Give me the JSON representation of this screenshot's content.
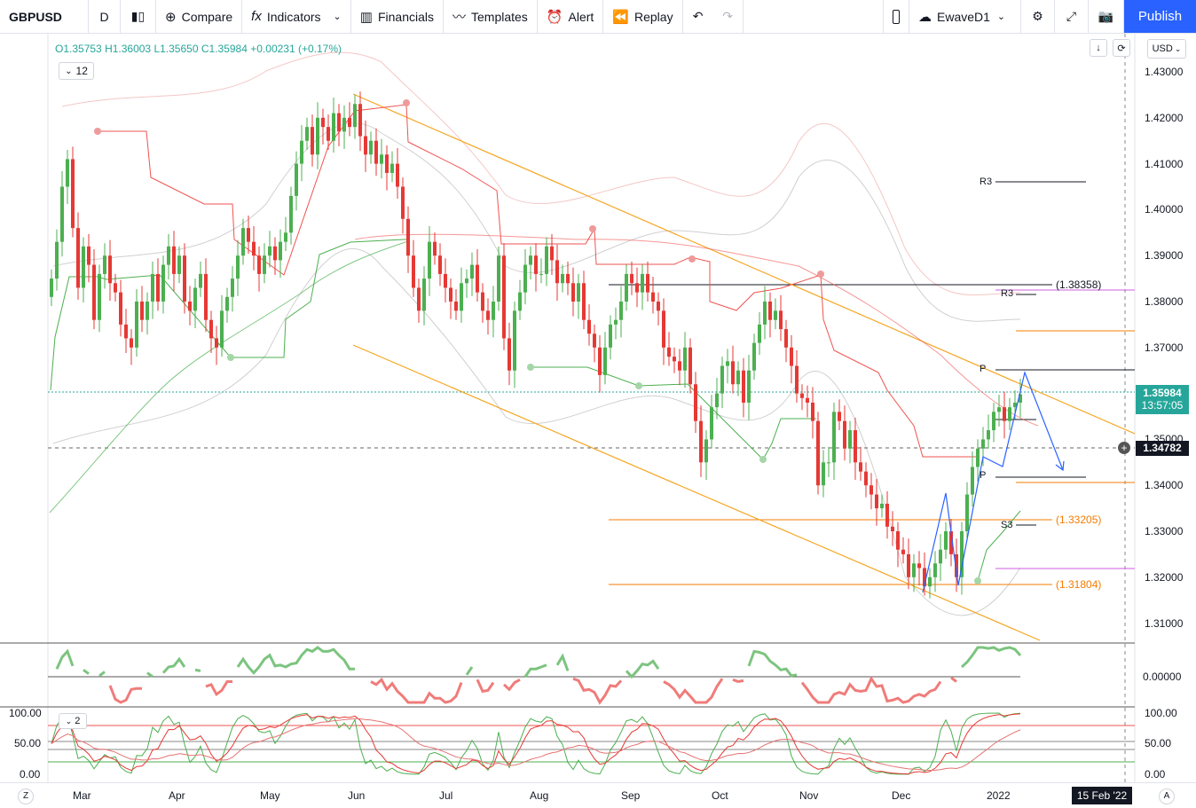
{
  "toolbar": {
    "symbol": "GBPUSD",
    "interval": "D",
    "compare": "Compare",
    "indicators": "Indicators",
    "financials": "Financials",
    "templates": "Templates",
    "alert": "Alert",
    "replay": "Replay",
    "layout_name": "EwaveD1",
    "publish": "Publish"
  },
  "legend": {
    "open": "O1.35753",
    "high": "H1.36003",
    "low": "L1.35650",
    "close": "C1.35984",
    "change": "+0.00231 (+0.17%)",
    "indicator_count": "12",
    "osc_count": "2"
  },
  "currency": "USD",
  "price_axis": {
    "ticks": [
      "1.43000",
      "1.42000",
      "1.41000",
      "1.40000",
      "1.39000",
      "1.38000",
      "1.37000",
      "1.35000",
      "1.34000",
      "1.33000",
      "1.32000",
      "1.31000"
    ],
    "last_price": "1.35984",
    "countdown": "13:57:05",
    "crosshair_price": "1.34782"
  },
  "levels": {
    "l1": "(1.38358)",
    "l2": "(1.33205)",
    "l3": "(1.31804)",
    "r3_top": "R3",
    "r3_mid": "R3",
    "p_top": "P",
    "p_mid": "P",
    "s3": "S3"
  },
  "osc1_axis": {
    "zero": "0.00000"
  },
  "osc2_axis": {
    "top": "100.00",
    "mid": "50.00",
    "bottom": "0.00"
  },
  "time_axis": [
    "Mar",
    "Apr",
    "May",
    "Jun",
    "Jul",
    "Aug",
    "Sep",
    "Oct",
    "Nov",
    "Dec",
    "2022"
  ],
  "date_cursor": "15 Feb '22",
  "footer": {
    "z": "Z",
    "a": "A"
  },
  "colors": {
    "up": "#26a69a",
    "down": "#ef5350",
    "accent": "#2962ff"
  },
  "chart_data": {
    "type": "candlestick",
    "symbol": "GBPUSD",
    "ylim": [
      1.305,
      1.435
    ],
    "close_series": [
      1.385,
      1.393,
      1.405,
      1.411,
      1.396,
      1.383,
      1.392,
      1.388,
      1.376,
      1.386,
      1.39,
      1.384,
      1.382,
      1.375,
      1.372,
      1.37,
      1.38,
      1.376,
      1.38,
      1.386,
      1.38,
      1.388,
      1.392,
      1.386,
      1.39,
      1.38,
      1.378,
      1.383,
      1.386,
      1.376,
      1.372,
      1.37,
      1.378,
      1.381,
      1.385,
      1.39,
      1.396,
      1.393,
      1.39,
      1.386,
      1.39,
      1.392,
      1.389,
      1.393,
      1.395,
      1.403,
      1.41,
      1.415,
      1.418,
      1.412,
      1.42,
      1.418,
      1.415,
      1.421,
      1.417,
      1.42,
      1.418,
      1.423,
      1.416,
      1.412,
      1.415,
      1.41,
      1.412,
      1.408,
      1.41,
      1.405,
      1.398,
      1.39,
      1.383,
      1.378,
      1.385,
      1.393,
      1.39,
      1.386,
      1.383,
      1.38,
      1.378,
      1.384,
      1.385,
      1.388,
      1.382,
      1.378,
      1.376,
      1.38,
      1.39,
      1.372,
      1.365,
      1.378,
      1.382,
      1.388,
      1.39,
      1.386,
      1.386,
      1.392,
      1.389,
      1.384,
      1.386,
      1.384,
      1.38,
      1.384,
      1.376,
      1.373,
      1.37,
      1.364,
      1.37,
      1.375,
      1.376,
      1.38,
      1.386,
      1.384,
      1.382,
      1.386,
      1.382,
      1.38,
      1.378,
      1.37,
      1.368,
      1.367,
      1.365,
      1.37,
      1.362,
      1.354,
      1.345,
      1.35,
      1.357,
      1.36,
      1.366,
      1.367,
      1.362,
      1.365,
      1.358,
      1.365,
      1.371,
      1.375,
      1.38,
      1.376,
      1.378,
      1.374,
      1.37,
      1.366,
      1.36,
      1.359,
      1.358,
      1.354,
      1.34,
      1.345,
      1.345,
      1.356,
      1.354,
      1.348,
      1.352,
      1.345,
      1.343,
      1.34,
      1.338,
      1.335,
      1.336,
      1.331,
      1.33,
      1.326,
      1.325,
      1.32,
      1.323,
      1.322,
      1.318,
      1.32,
      1.323,
      1.326,
      1.33,
      1.325,
      1.32,
      1.33,
      1.338,
      1.344,
      1.348,
      1.35,
      1.352,
      1.356,
      1.357,
      1.354,
      1.357,
      1.358,
      1.3598
    ]
  }
}
